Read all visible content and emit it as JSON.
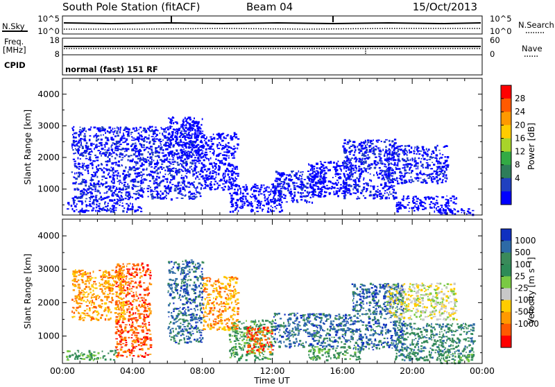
{
  "header": {
    "station": "South Pole Station (fitACF)",
    "beam": "Beam 04",
    "date": "15/Oct/2013"
  },
  "top_panels": {
    "nsky_label": "N.Sky",
    "nsky_ticks": [
      "10^5",
      "10^0"
    ],
    "nsearch_label": "N.Search",
    "nsearch_ticks": [
      "10^5",
      "10^0"
    ],
    "freq_label": "Freq.",
    "freq_unit": "[MHz]",
    "freq_ticks": [
      "18",
      "8"
    ],
    "nave_label": "Nave",
    "nave_ticks": [
      "60",
      "0"
    ],
    "cpid_label": "CPID",
    "cpid_text": "normal (fast) 151 RF"
  },
  "chart_data": [
    {
      "type": "heatmap",
      "name": "power",
      "ylabel": "Slant Range [km]",
      "xlabel": "",
      "xlim": [
        0,
        24
      ],
      "ylim": [
        180,
        4500
      ],
      "yticks": [
        "1000",
        "2000",
        "3000",
        "4000"
      ],
      "colorbar": {
        "label": "Power [dB]",
        "ticks": [
          "28",
          "24",
          "20",
          "16",
          "12",
          "8",
          "4"
        ],
        "colors": [
          "#ff0000",
          "#ff5a00",
          "#ff9900",
          "#ffcc00",
          "#a8d42a",
          "#33aa44",
          "#2e7d5a",
          "#2040c0",
          "#0000ff"
        ]
      },
      "regions": [
        {
          "t": [
            0.2,
            2.0
          ],
          "r": [
            300,
            600
          ],
          "level": 9
        },
        {
          "t": [
            2.0,
            4.0
          ],
          "r": [
            300,
            600
          ],
          "level": 8
        },
        {
          "t": [
            3.6,
            4.6
          ],
          "r": [
            300,
            500
          ],
          "level": 11
        },
        {
          "t": [
            0.5,
            3.5
          ],
          "r": [
            600,
            3000
          ],
          "level": 8
        },
        {
          "t": [
            3.5,
            8.0
          ],
          "r": [
            700,
            3000
          ],
          "level": 8
        },
        {
          "t": [
            6.0,
            8.0
          ],
          "r": [
            2000,
            3300
          ],
          "level": 9
        },
        {
          "t": [
            8.0,
            10.0
          ],
          "r": [
            1000,
            2800
          ],
          "level": 9
        },
        {
          "t": [
            9.5,
            12.5
          ],
          "r": [
            300,
            1200
          ],
          "level": 9
        },
        {
          "t": [
            12.0,
            15.0
          ],
          "r": [
            600,
            1600
          ],
          "level": 8
        },
        {
          "t": [
            14.0,
            16.5
          ],
          "r": [
            800,
            1900
          ],
          "level": 10
        },
        {
          "t": [
            16.0,
            19.0
          ],
          "r": [
            700,
            2600
          ],
          "level": 8
        },
        {
          "t": [
            18.5,
            22.0
          ],
          "r": [
            1200,
            2400
          ],
          "level": 8
        },
        {
          "t": [
            19.0,
            22.5
          ],
          "r": [
            300,
            800
          ],
          "level": 9
        },
        {
          "t": [
            21.5,
            23.5
          ],
          "r": [
            200,
            400
          ],
          "level": 12
        }
      ]
    },
    {
      "type": "heatmap",
      "name": "velocity",
      "ylabel": "Slant Range [km]",
      "xlabel": "Time UT",
      "xlim": [
        0,
        24
      ],
      "ylim": [
        180,
        4500
      ],
      "yticks": [
        "1000",
        "2000",
        "3000",
        "4000"
      ],
      "xticks": [
        "00:00",
        "04:00",
        "08:00",
        "12:00",
        "16:00",
        "20:00",
        "00:00"
      ],
      "colorbar": {
        "label": "Velocity [m s⁻¹]",
        "ticks": [
          "1000",
          "500",
          "100",
          "25",
          "-25",
          "-100",
          "-500",
          "-1000"
        ],
        "colors": [
          "#1030c0",
          "#2d6aa6",
          "#3a8a5a",
          "#2e8b57",
          "#7ac943",
          "#c8c8c8",
          "#ffcc00",
          "#ff9900",
          "#ff5a00",
          "#ff0000"
        ]
      },
      "regions": [
        {
          "t": [
            0.2,
            3.0
          ],
          "r": [
            300,
            600
          ],
          "level": 3
        },
        {
          "t": [
            3.0,
            5.0
          ],
          "r": [
            400,
            3200
          ],
          "level": 8
        },
        {
          "t": [
            0.5,
            3.5
          ],
          "r": [
            1500,
            3000
          ],
          "level": 7
        },
        {
          "t": [
            6.0,
            8.0
          ],
          "r": [
            800,
            3300
          ],
          "level": 1
        },
        {
          "t": [
            8.0,
            10.0
          ],
          "r": [
            1200,
            2800
          ],
          "level": 7
        },
        {
          "t": [
            9.5,
            12.0
          ],
          "r": [
            300,
            1500
          ],
          "level": 3
        },
        {
          "t": [
            10.5,
            12.0
          ],
          "r": [
            500,
            1300
          ],
          "level": 8
        },
        {
          "t": [
            12.0,
            16.5
          ],
          "r": [
            700,
            1700
          ],
          "level": 1
        },
        {
          "t": [
            14.0,
            17.0
          ],
          "r": [
            300,
            700
          ],
          "level": 3
        },
        {
          "t": [
            16.5,
            19.5
          ],
          "r": [
            600,
            2600
          ],
          "level": 1
        },
        {
          "t": [
            18.5,
            22.5
          ],
          "r": [
            1500,
            2600
          ],
          "level": 5
        },
        {
          "t": [
            19.0,
            23.5
          ],
          "r": [
            300,
            1400
          ],
          "level": 2
        },
        {
          "t": [
            21.5,
            23.5
          ],
          "r": [
            200,
            500
          ],
          "level": 3
        }
      ]
    }
  ]
}
